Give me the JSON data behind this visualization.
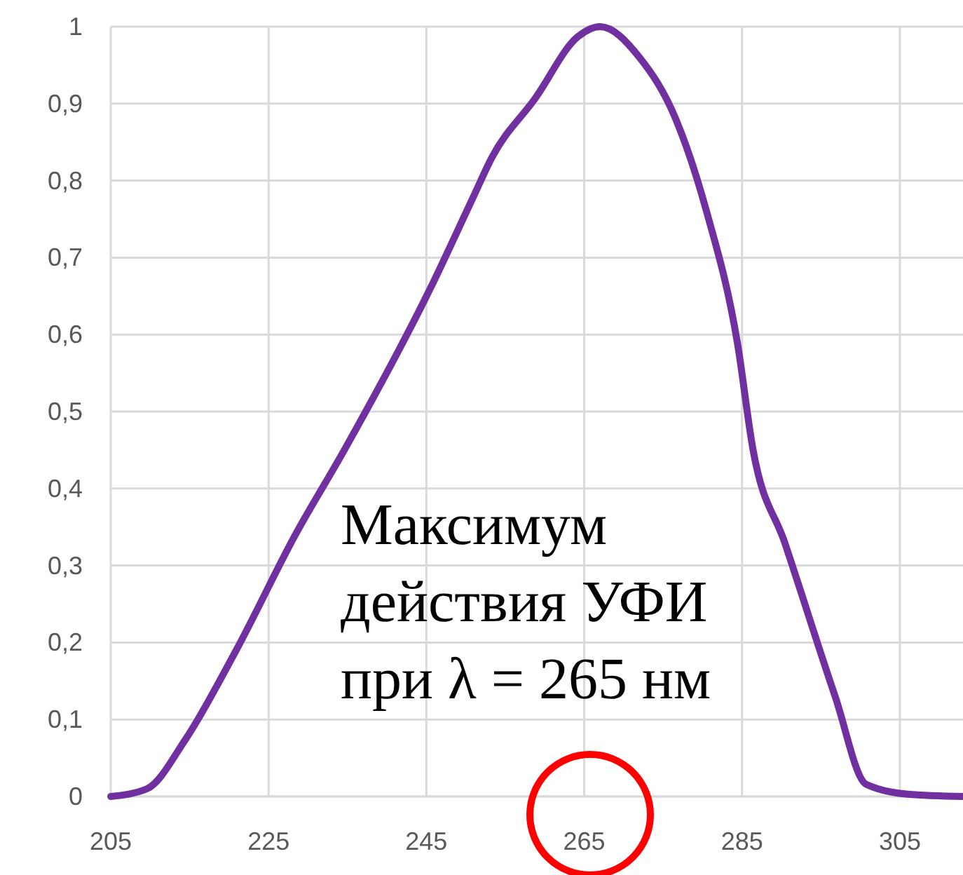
{
  "chart_data": {
    "type": "line",
    "xlim": [
      205,
      313
    ],
    "ylim": [
      0,
      1
    ],
    "xticks": [
      205,
      225,
      245,
      265,
      285,
      305
    ],
    "yticks": [
      0,
      {
        "value": 0.1,
        "label": "0,1"
      },
      {
        "value": 0.2,
        "label": "0,2"
      },
      {
        "value": 0.3,
        "label": "0,3"
      },
      {
        "value": 0.4,
        "label": "0,4"
      },
      {
        "value": 0.5,
        "label": "0,5"
      },
      {
        "value": 0.6,
        "label": "0,6"
      },
      {
        "value": 0.7,
        "label": "0,7"
      },
      {
        "value": 0.8,
        "label": "0,8"
      },
      {
        "value": 0.9,
        "label": "0,9"
      },
      1
    ],
    "grid": true,
    "x": [
      205,
      209.6,
      214.4,
      220.9,
      228.4,
      234.6,
      245.5,
      251,
      253.3,
      258.8,
      264.2,
      267,
      272,
      276.6,
      280.5,
      284.4,
      286.4,
      290.4,
      296.8,
      300.7,
      306,
      313
    ],
    "series": [
      {
        "color": "#7030a0",
        "values": [
          0,
          0.01,
          0.073,
          0.19,
          0.34,
          0.45,
          0.66,
          0.78,
          0.83,
          0.907,
          0.987,
          1,
          0.96,
          0.88,
          0.76,
          0.59,
          0.45,
          0.33,
          0.13,
          0.016,
          0.003,
          0
        ]
      }
    ],
    "annotations": [
      "Максимум\nдействия УФИ\nпри λ = 265 нм"
    ]
  }
}
